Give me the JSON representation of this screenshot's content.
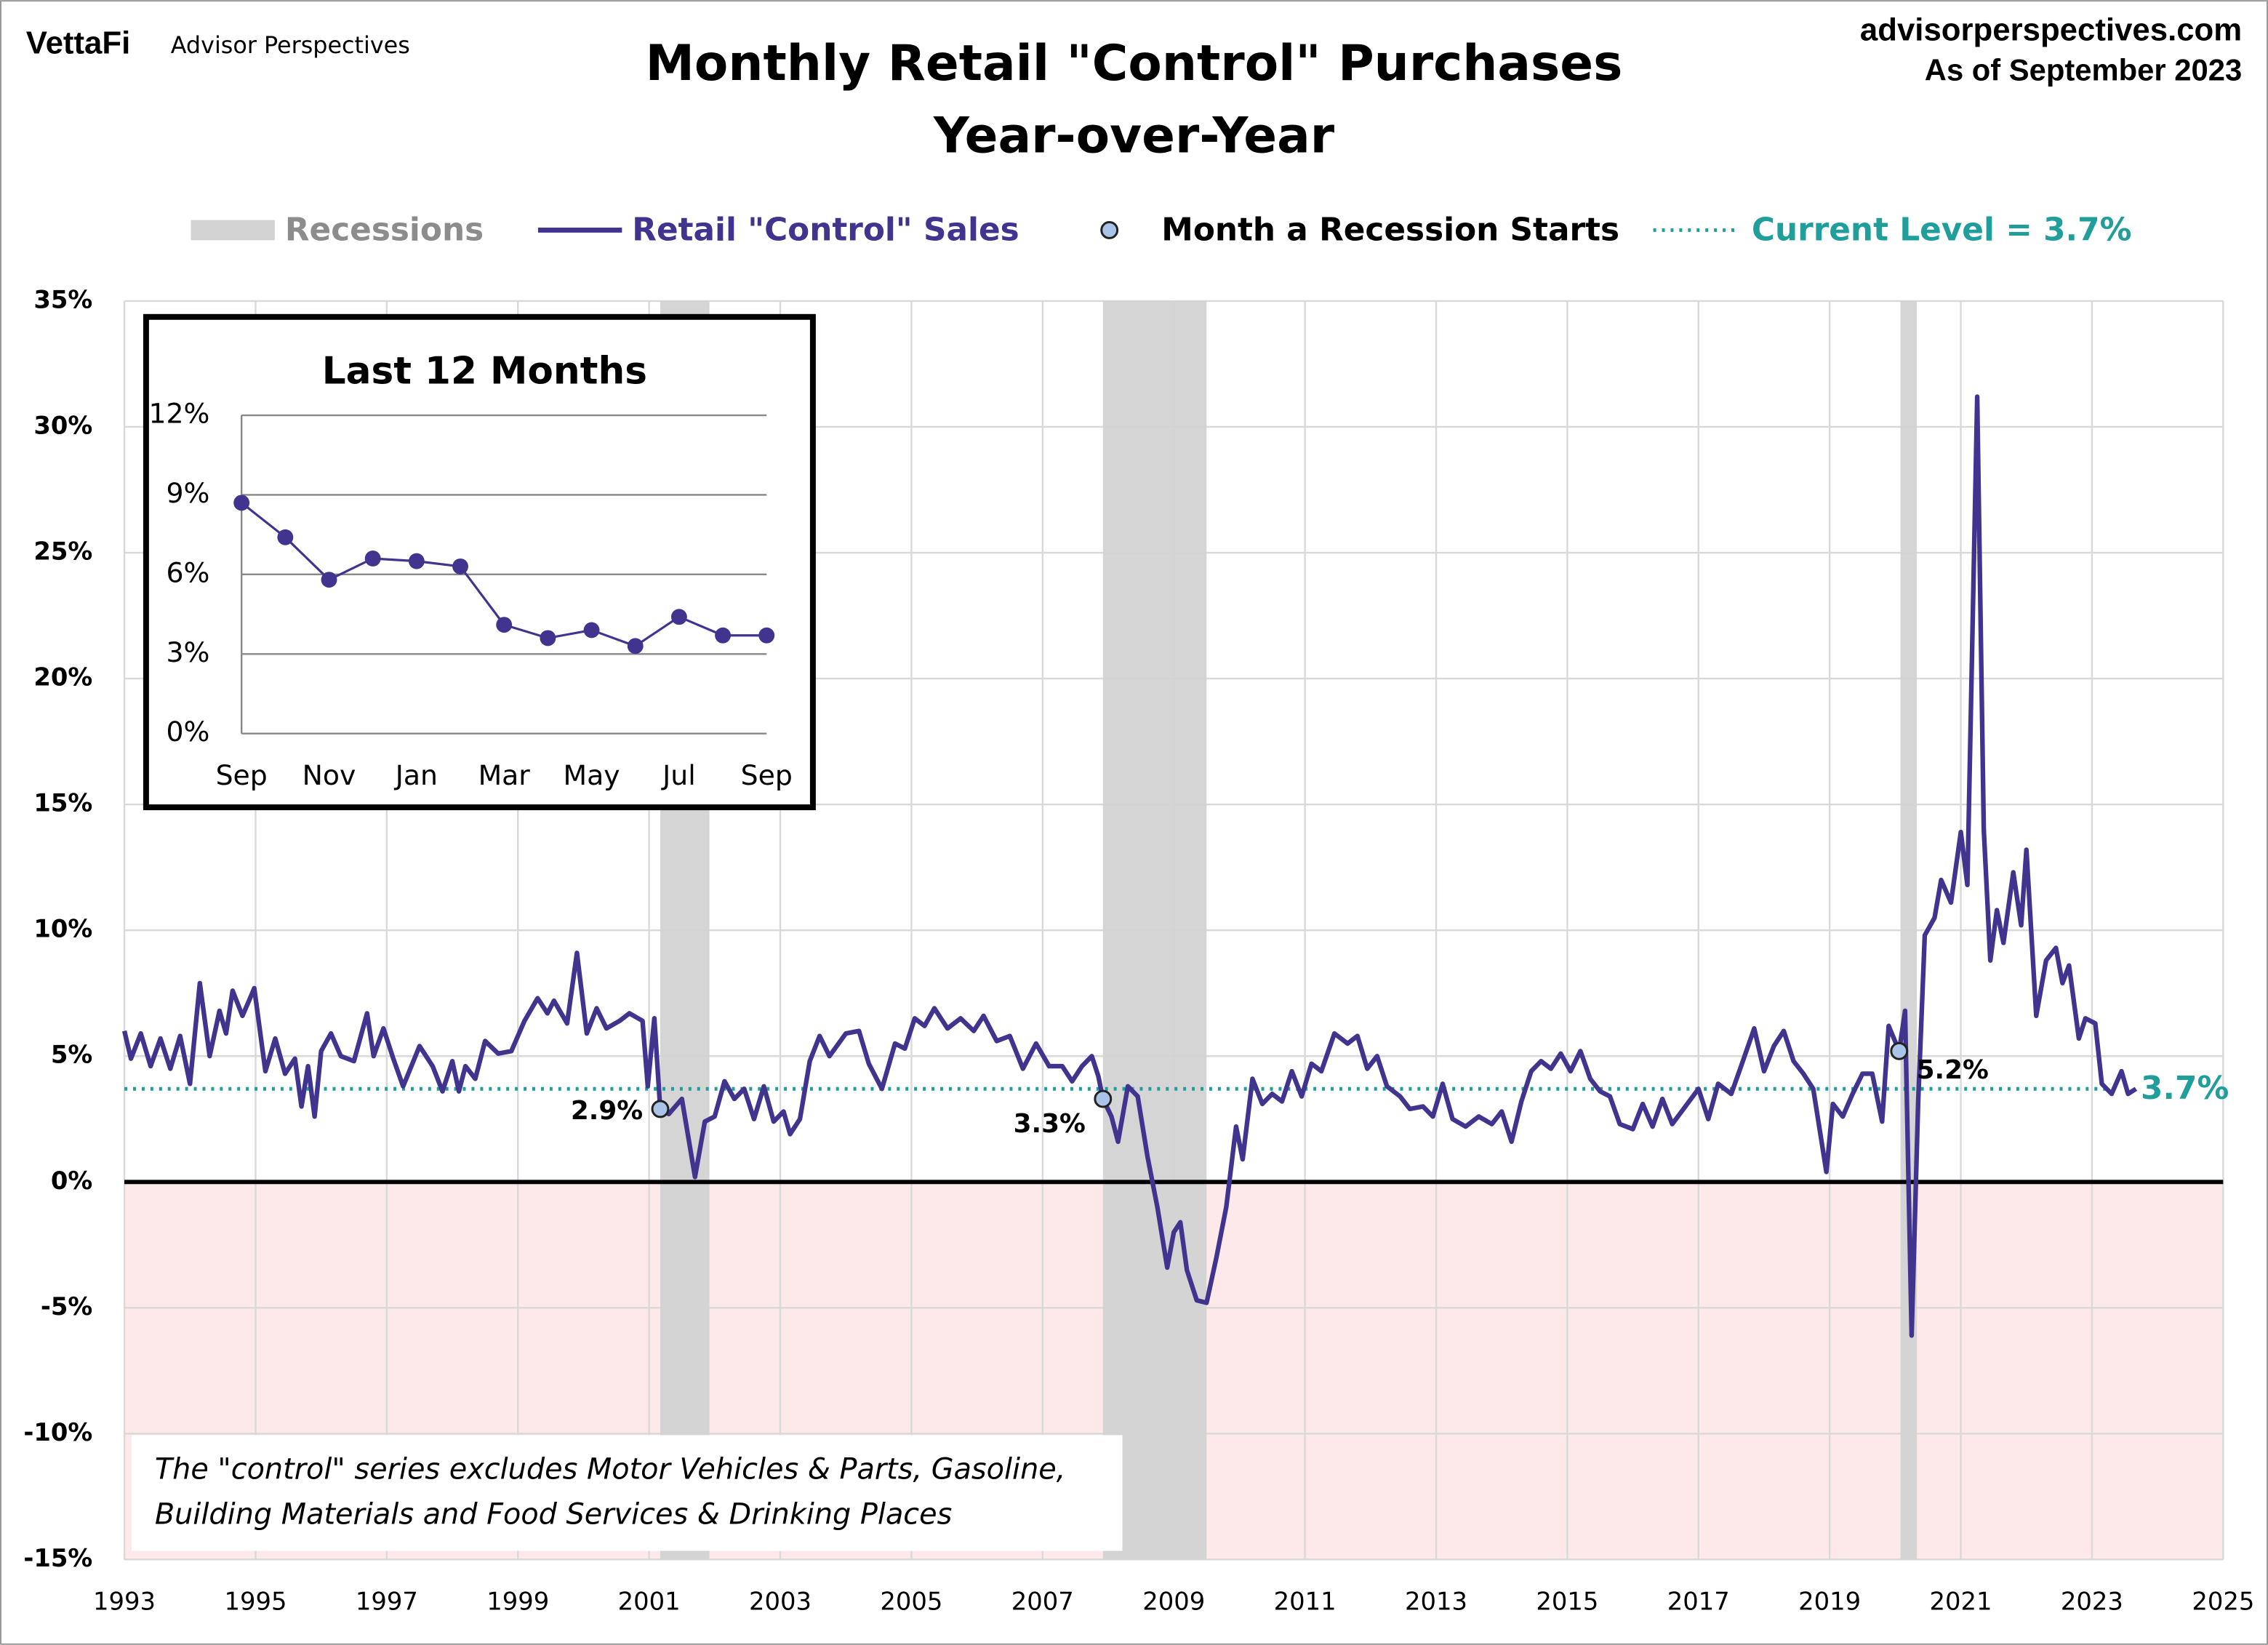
{
  "header": {
    "logo": "VettaFi",
    "brand": "Advisor Perspectives",
    "site": "advisorperspectives.com",
    "as_of": "As of September 2023"
  },
  "note": [
    "The \"control\" series excludes Motor Vehicles & Parts, Gasoline,",
    "Building Materials and Food Services & Drinking Places"
  ],
  "chart_data": [
    {
      "type": "line",
      "title": "Monthly Retail \"Control\" Purchases",
      "subtitle": "Year-over-Year",
      "xlim": [
        1993,
        2025
      ],
      "xticks": [
        1993,
        1995,
        1997,
        1999,
        2001,
        2003,
        2005,
        2007,
        2009,
        2011,
        2013,
        2015,
        2017,
        2019,
        2021,
        2023,
        2025
      ],
      "ylim": [
        -15,
        35
      ],
      "yticks": [
        {
          "value": -15,
          "label": "-15%"
        },
        {
          "value": -10,
          "label": "-10%"
        },
        {
          "value": -5,
          "label": "-5%"
        },
        {
          "value": 0,
          "label": "0%"
        },
        {
          "value": 5,
          "label": "5%"
        },
        {
          "value": 10,
          "label": "10%"
        },
        {
          "value": 15,
          "label": "15%"
        },
        {
          "value": 20,
          "label": "20%"
        },
        {
          "value": 25,
          "label": "25%"
        },
        {
          "value": 30,
          "label": "30%"
        },
        {
          "value": 35,
          "label": "35%"
        }
      ],
      "grid": true,
      "negative_fill": "#fde9e9",
      "x": [
        1993.0,
        1993.1,
        1993.25,
        1993.4,
        1993.55,
        1993.7,
        1993.85,
        1994.0,
        1994.15,
        1994.3,
        1994.45,
        1994.55,
        1994.65,
        1994.8,
        1994.9,
        1994.98,
        1995.15,
        1995.3,
        1995.45,
        1995.6,
        1995.7,
        1995.8,
        1995.9,
        1996.0,
        1996.15,
        1996.3,
        1996.5,
        1996.7,
        1996.8,
        1996.95,
        1997.1,
        1997.25,
        1997.5,
        1997.7,
        1997.85,
        1998.0,
        1998.1,
        1998.2,
        1998.35,
        1998.5,
        1998.7,
        1998.9,
        1999.1,
        1999.3,
        1999.45,
        1999.55,
        1999.75,
        1999.9,
        2000.05,
        2000.2,
        2000.35,
        2000.55,
        2000.7,
        2000.9,
        2000.98,
        2001.08,
        2001.17,
        2001.3,
        2001.5,
        2001.7,
        2001.85,
        2002.0,
        2002.15,
        2002.3,
        2002.45,
        2002.6,
        2002.75,
        2002.9,
        2003.05,
        2003.15,
        2003.3,
        2003.45,
        2003.6,
        2003.75,
        2004.0,
        2004.2,
        2004.35,
        2004.55,
        2004.75,
        2004.9,
        2005.05,
        2005.2,
        2005.35,
        2005.55,
        2005.75,
        2005.95,
        2006.1,
        2006.3,
        2006.5,
        2006.7,
        2006.9,
        2007.1,
        2007.3,
        2007.45,
        2007.6,
        2007.75,
        2007.85,
        2007.92,
        2008.05,
        2008.15,
        2008.3,
        2008.45,
        2008.6,
        2008.75,
        2008.9,
        2009.0,
        2009.1,
        2009.2,
        2009.35,
        2009.5,
        2009.65,
        2009.8,
        2009.95,
        2010.05,
        2010.2,
        2010.35,
        2010.5,
        2010.65,
        2010.8,
        2010.95,
        2011.1,
        2011.25,
        2011.45,
        2011.65,
        2011.8,
        2011.95,
        2012.1,
        2012.25,
        2012.45,
        2012.6,
        2012.8,
        2012.95,
        2013.1,
        2013.25,
        2013.45,
        2013.65,
        2013.85,
        2014.0,
        2014.15,
        2014.3,
        2014.45,
        2014.6,
        2014.75,
        2014.9,
        2015.05,
        2015.2,
        2015.35,
        2015.5,
        2015.65,
        2015.8,
        2016.0,
        2016.15,
        2016.3,
        2016.45,
        2016.6,
        2016.8,
        2017.0,
        2017.15,
        2017.3,
        2017.5,
        2017.65,
        2017.85,
        2018.0,
        2018.15,
        2018.3,
        2018.45,
        2018.6,
        2018.75,
        2018.95,
        2019.05,
        2019.2,
        2019.35,
        2019.5,
        2019.65,
        2019.8,
        2019.9,
        2020.06,
        2020.15,
        2020.25,
        2020.35,
        2020.45,
        2020.6,
        2020.7,
        2020.85,
        2021.0,
        2021.1,
        2021.25,
        2021.35,
        2021.45,
        2021.55,
        2021.65,
        2021.8,
        2021.92,
        2022.0,
        2022.15,
        2022.3,
        2022.45,
        2022.55,
        2022.65,
        2022.8,
        2022.9,
        2023.05,
        2023.15,
        2023.3,
        2023.45,
        2023.55,
        2023.67
      ],
      "series": [
        {
          "name": "Retail \"Control\" Sales",
          "color": "#41348f",
          "values": [
            6.0,
            4.9,
            5.9,
            4.6,
            5.7,
            4.5,
            5.8,
            3.9,
            7.9,
            5.0,
            6.8,
            5.9,
            7.6,
            6.6,
            7.2,
            7.7,
            4.4,
            5.7,
            4.3,
            4.9,
            3.0,
            4.6,
            2.6,
            5.2,
            5.9,
            5.0,
            4.8,
            6.7,
            5.0,
            6.1,
            4.9,
            3.8,
            5.4,
            4.6,
            3.6,
            4.8,
            3.6,
            4.6,
            4.1,
            5.6,
            5.1,
            5.2,
            6.4,
            7.3,
            6.7,
            7.2,
            6.3,
            9.1,
            5.9,
            6.9,
            6.1,
            6.4,
            6.7,
            6.4,
            3.8,
            6.5,
            2.9,
            2.7,
            3.3,
            0.2,
            2.4,
            2.6,
            4.0,
            3.3,
            3.7,
            2.5,
            3.8,
            2.4,
            2.8,
            1.9,
            2.5,
            4.8,
            5.8,
            5.0,
            5.9,
            6.0,
            4.7,
            3.7,
            5.5,
            5.3,
            6.5,
            6.2,
            6.9,
            6.1,
            6.5,
            6.0,
            6.6,
            5.6,
            5.8,
            4.5,
            5.5,
            4.6,
            4.6,
            4.0,
            4.6,
            5.0,
            4.2,
            3.3,
            2.6,
            1.6,
            3.8,
            3.4,
            1.0,
            -1.0,
            -3.4,
            -2.0,
            -1.6,
            -3.5,
            -4.7,
            -4.8,
            -3.0,
            -1.0,
            2.2,
            0.9,
            4.1,
            3.1,
            3.5,
            3.2,
            4.4,
            3.4,
            4.7,
            4.4,
            5.9,
            5.5,
            5.8,
            4.5,
            5.0,
            3.8,
            3.4,
            2.9,
            3.0,
            2.6,
            3.9,
            2.5,
            2.2,
            2.6,
            2.3,
            2.8,
            1.6,
            3.2,
            4.4,
            4.8,
            4.5,
            5.1,
            4.4,
            5.2,
            4.1,
            3.6,
            3.4,
            2.3,
            2.1,
            3.1,
            2.2,
            3.3,
            2.3,
            3.0,
            3.7,
            2.5,
            3.9,
            3.5,
            4.6,
            6.1,
            4.4,
            5.4,
            6.0,
            4.8,
            4.3,
            3.7,
            0.4,
            3.1,
            2.6,
            3.5,
            4.3,
            4.3,
            2.4,
            6.2,
            5.2,
            6.8,
            -6.1,
            3.2,
            9.8,
            10.5,
            12.0,
            11.1,
            13.9,
            11.8,
            31.2,
            14.0,
            8.8,
            10.8,
            9.5,
            12.3,
            10.2,
            13.2,
            6.6,
            8.8,
            9.3,
            7.9,
            8.6,
            5.7,
            6.5,
            6.3,
            3.9,
            3.5,
            4.4,
            3.5,
            3.7
          ]
        }
      ],
      "recessions": {
        "name": "Recessions",
        "color": "#d3d3d3",
        "ranges": [
          [
            2001.17,
            2001.92
          ],
          [
            2007.92,
            2009.5
          ],
          [
            2020.08,
            2020.33
          ]
        ]
      },
      "recession_starts": {
        "name": "Month a Recession Starts",
        "color": "#a9c4e8",
        "x": [
          2001.17,
          2007.92,
          2020.06
        ],
        "values": [
          2.9,
          3.3,
          5.2
        ],
        "value_labels": [
          "2.9%",
          "3.3%",
          "5.2%"
        ]
      },
      "current_level": {
        "name": "Current Level = 3.7%",
        "color": "#1f9e9c",
        "value": 3.7,
        "value_label": "3.7%"
      }
    },
    {
      "type": "line",
      "title": "Last 12 Months",
      "markers": true,
      "color": "#41348f",
      "categories": [
        "Sep",
        null,
        "Nov",
        null,
        "Jan",
        null,
        "Mar",
        null,
        "May",
        null,
        "Jul",
        null,
        "Sep"
      ],
      "values": [
        8.7,
        7.4,
        5.8,
        6.6,
        6.5,
        6.3,
        4.1,
        3.6,
        3.9,
        3.3,
        4.4,
        3.7,
        3.7
      ],
      "ylim": [
        0,
        12
      ],
      "yticks": [
        {
          "value": 0,
          "label": "0%"
        },
        {
          "value": 3,
          "label": "3%"
        },
        {
          "value": 6,
          "label": "6%"
        },
        {
          "value": 9,
          "label": "9%"
        },
        {
          "value": 12,
          "label": "12%"
        }
      ],
      "grid": true
    }
  ]
}
